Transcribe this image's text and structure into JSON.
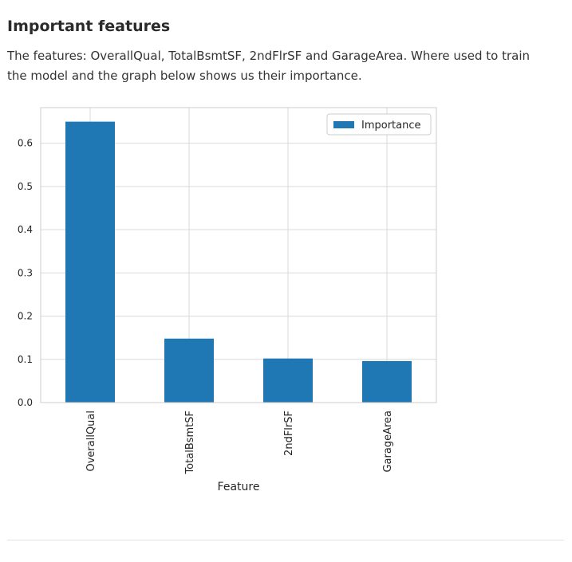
{
  "section": {
    "heading": "Important features",
    "intro": "The features: OverallQual, TotalBsmtSF, 2ndFlrSF and GarageArea. Where used to train the model and the graph below shows us their importance."
  },
  "chart_data": {
    "type": "bar",
    "categories": [
      "OverallQual",
      "TotalBsmtSF",
      "2ndFlrSF",
      "GarageArea"
    ],
    "series": [
      {
        "name": "Importance",
        "values": [
          0.65,
          0.148,
          0.102,
          0.096
        ],
        "color": "#1f77b4"
      }
    ],
    "xlabel": "Feature",
    "ylabel": "",
    "ylim": [
      0,
      0.6825
    ],
    "yticks": [
      0.0,
      0.1,
      0.2,
      0.3,
      0.4,
      0.5,
      0.6
    ],
    "ytick_labels": [
      "0.0",
      "0.1",
      "0.2",
      "0.3",
      "0.4",
      "0.5",
      "0.6"
    ],
    "xtick_rotation": "vertical",
    "grid": true,
    "legend_position": "top-right",
    "colors": {
      "bar": "#1f77b4",
      "grid": "#d9d9d9",
      "axes_edge": "#cccccc",
      "text": "#262626"
    }
  }
}
